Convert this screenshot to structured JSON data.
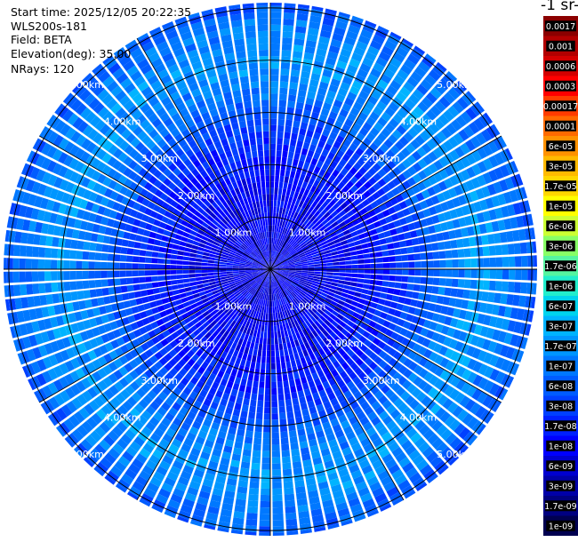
{
  "info": {
    "start_time": "Start time: 2025/12/05 20:22:35",
    "instrument": "WLS200s-181",
    "field": "Field: BETA",
    "elevation": "Elevation(deg): 35.00",
    "nrays": "NRays: 120"
  },
  "colorbar": {
    "title": "-1 sr-",
    "labels": [
      "0.0017",
      "0.001",
      "0.0006",
      "0.0003",
      "0.00017",
      "0.0001",
      "6e-05",
      "3e-05",
      "1.7e-05",
      "1e-05",
      "6e-06",
      "3e-06",
      "1.7e-06",
      "1e-06",
      "6e-07",
      "3e-07",
      "1.7e-07",
      "1e-07",
      "6e-08",
      "3e-08",
      "1.7e-08",
      "1e-08",
      "6e-09",
      "3e-09",
      "1.7e-09",
      "1e-09"
    ],
    "colors": [
      "#8b0000",
      "#b20000",
      "#d40000",
      "#ff0000",
      "#ff3c00",
      "#ff6a00",
      "#ff9200",
      "#ffba00",
      "#ffd700",
      "#ffff00",
      "#ccff33",
      "#88ff66",
      "#55f5a0",
      "#22eecc",
      "#00d4ee",
      "#00b4ff",
      "#0096ff",
      "#0078ff",
      "#005cff",
      "#0040ff",
      "#0020ff",
      "#0000ff",
      "#0000d0",
      "#0000a8",
      "#000080",
      "#000050"
    ]
  },
  "chart_data": {
    "type": "heatmap",
    "projection": "polar PPI scan",
    "field": "BETA",
    "elevation_deg": 35.0,
    "n_rays": 120,
    "range_unit": "km",
    "range_max_km": 5.1,
    "range_rings_km": [
      1,
      2,
      3,
      4,
      5
    ],
    "range_ring_labels": [
      "1.00km",
      "2.00km",
      "3.00km",
      "4.00km",
      "5.00km"
    ],
    "grid": true,
    "spoke_angles_deg": [
      0,
      30,
      60,
      90,
      120,
      150,
      180,
      210,
      240,
      270,
      300,
      330
    ],
    "color_scale": "log",
    "value_range": [
      1e-09,
      0.0017
    ],
    "radial_profile": [
      {
        "range_km": 0.5,
        "beta": 1e-08
      },
      {
        "range_km": 1.5,
        "beta": 1.2e-08
      },
      {
        "range_km": 2.5,
        "beta": 2.5e-08
      },
      {
        "range_km": 3.3,
        "beta": 9e-08
      },
      {
        "range_km": 4.0,
        "beta": 2e-07
      },
      {
        "range_km": 4.6,
        "beta": 1.2e-07
      },
      {
        "range_km": 5.0,
        "beta": 6e-08
      }
    ]
  }
}
